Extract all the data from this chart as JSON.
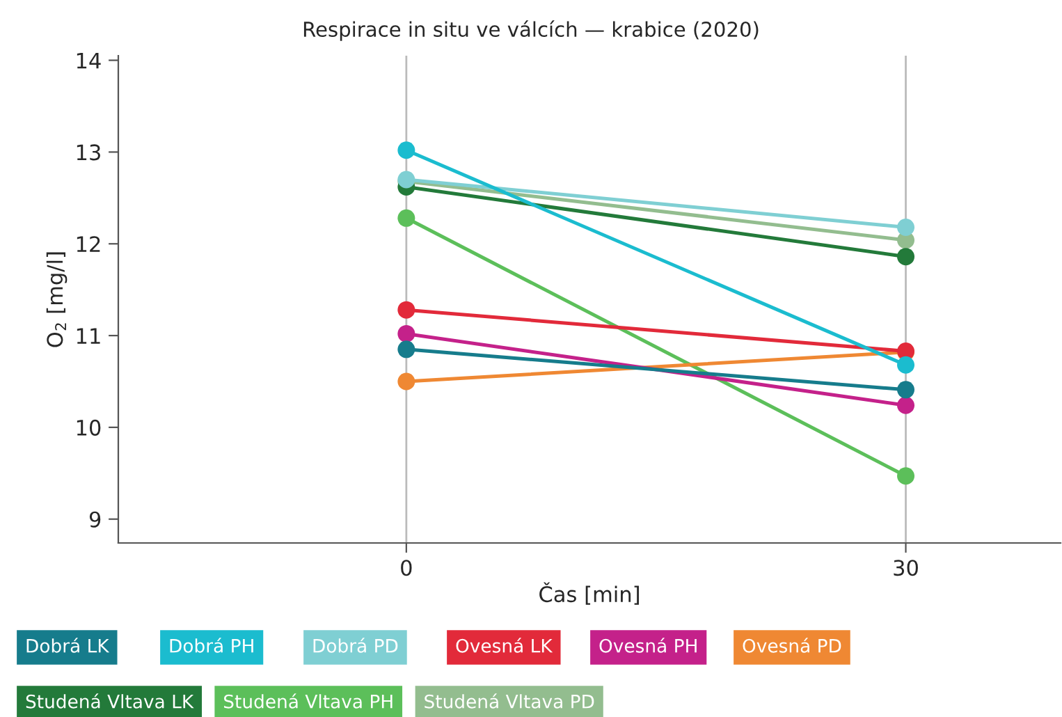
{
  "chart_data": {
    "type": "line",
    "title": "Respirace in situ ve válcích — krabice (2020)",
    "xlabel": "Čas [min]",
    "ylabel": "O$_{2}$ [mg/l]",
    "x": [
      0,
      30
    ],
    "xlim": [
      -17.3,
      39.3
    ],
    "xticks": [
      0,
      30
    ],
    "ylim": [
      8.74,
      14.05
    ],
    "yticks": [
      9,
      10,
      11,
      12,
      13,
      14
    ],
    "grid": "x",
    "legend": "bottom",
    "marker": "circle",
    "line_style": "solid",
    "series": [
      {
        "name": "Dobrá LK",
        "color": "#167c8c",
        "values": [
          10.85,
          10.41
        ]
      },
      {
        "name": "Dobrá PH",
        "color": "#1bbccf",
        "values": [
          13.02,
          10.68
        ]
      },
      {
        "name": "Dobrá PD",
        "color": "#7fcfd3",
        "values": [
          12.7,
          12.18
        ]
      },
      {
        "name": "Ovesná LK",
        "color": "#e22a3a",
        "values": [
          11.28,
          10.83
        ]
      },
      {
        "name": "Ovesná PH",
        "color": "#c4218a",
        "values": [
          11.02,
          10.24
        ]
      },
      {
        "name": "Ovesná PD",
        "color": "#ef8833",
        "values": [
          10.5,
          10.82
        ]
      },
      {
        "name": "Studená Vltava LK",
        "color": "#237a3a",
        "values": [
          12.62,
          11.86
        ]
      },
      {
        "name": "Studená Vltava PH",
        "color": "#5cbf5a",
        "values": [
          12.28,
          9.47
        ]
      },
      {
        "name": "Studená Vltava PD",
        "color": "#93bd8f",
        "values": [
          12.68,
          12.04
        ]
      }
    ]
  }
}
